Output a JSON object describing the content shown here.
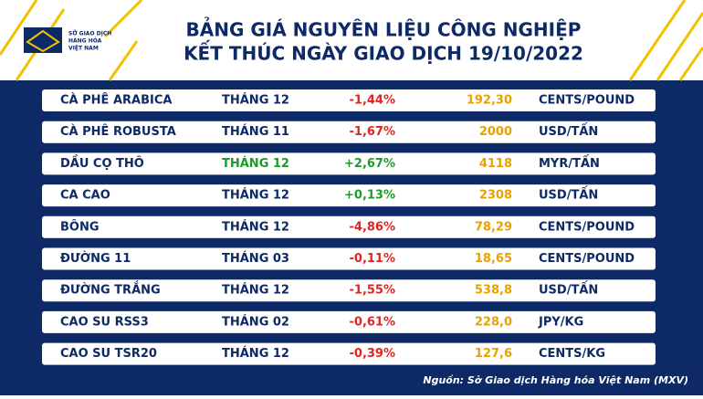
{
  "logo": {
    "lines": [
      "SỞ GIAO DỊCH",
      "HÀNG HÓA",
      "VIỆT NAM"
    ]
  },
  "header": {
    "title_lines": [
      "BẢNG GIÁ NGUYÊN LIỆU CÔNG NGHIỆP",
      "KẾT THÚC NGÀY GIAO DỊCH 19/10/2022"
    ]
  },
  "table": {
    "rows": [
      {
        "commodity": "CÀ PHÊ ARABICA",
        "month": "THÁNG 12",
        "change": "-1,44%",
        "price": "192,30",
        "unit": "CENTS/POUND",
        "change_color": "#e02420",
        "month_color": "#0d2a66"
      },
      {
        "commodity": "CÀ PHÊ ROBUSTA",
        "month": "THÁNG 11",
        "change": "-1,67%",
        "price": "2000",
        "unit": "USD/TẤN",
        "change_color": "#e02420",
        "month_color": "#0d2a66"
      },
      {
        "commodity": "DẦU CỌ THÔ",
        "month": "THÁNG 12",
        "change": "+2,67%",
        "price": "4118",
        "unit": "MYR/TẤN",
        "change_color": "#1e9a2a",
        "month_color": "#1e9a2a"
      },
      {
        "commodity": "CA CAO",
        "month": "THÁNG 12",
        "change": "+0,13%",
        "price": "2308",
        "unit": "USD/TẤN",
        "change_color": "#1e9a2a",
        "month_color": "#0d2a66"
      },
      {
        "commodity": "BÔNG",
        "month": "THÁNG 12",
        "change": "-4,86%",
        "price": "78,29",
        "unit": "CENTS/POUND",
        "change_color": "#e02420",
        "month_color": "#0d2a66"
      },
      {
        "commodity": "ĐƯỜNG 11",
        "month": "THÁNG 03",
        "change": "-0,11%",
        "price": "18,65",
        "unit": "CENTS/POUND",
        "change_color": "#e02420",
        "month_color": "#0d2a66"
      },
      {
        "commodity": "ĐƯỜNG TRẮNG",
        "month": "THÁNG 12",
        "change": "-1,55%",
        "price": "538,8",
        "unit": "USD/TẤN",
        "change_color": "#e02420",
        "month_color": "#0d2a66"
      },
      {
        "commodity": "CAO SU RSS3",
        "month": "THÁNG 02",
        "change": "-0,61%",
        "price": "228,0",
        "unit": "JPY/KG",
        "change_color": "#e02420",
        "month_color": "#0d2a66"
      },
      {
        "commodity": "CAO SU TSR20",
        "month": "THÁNG 12",
        "change": "-0,39%",
        "price": "127,6",
        "unit": "CENTS/KG",
        "change_color": "#e02420",
        "month_color": "#0d2a66"
      }
    ]
  },
  "footer": {
    "source": "Nguồn: Sở Giao dịch Hàng hóa Việt Nam (MXV)"
  }
}
